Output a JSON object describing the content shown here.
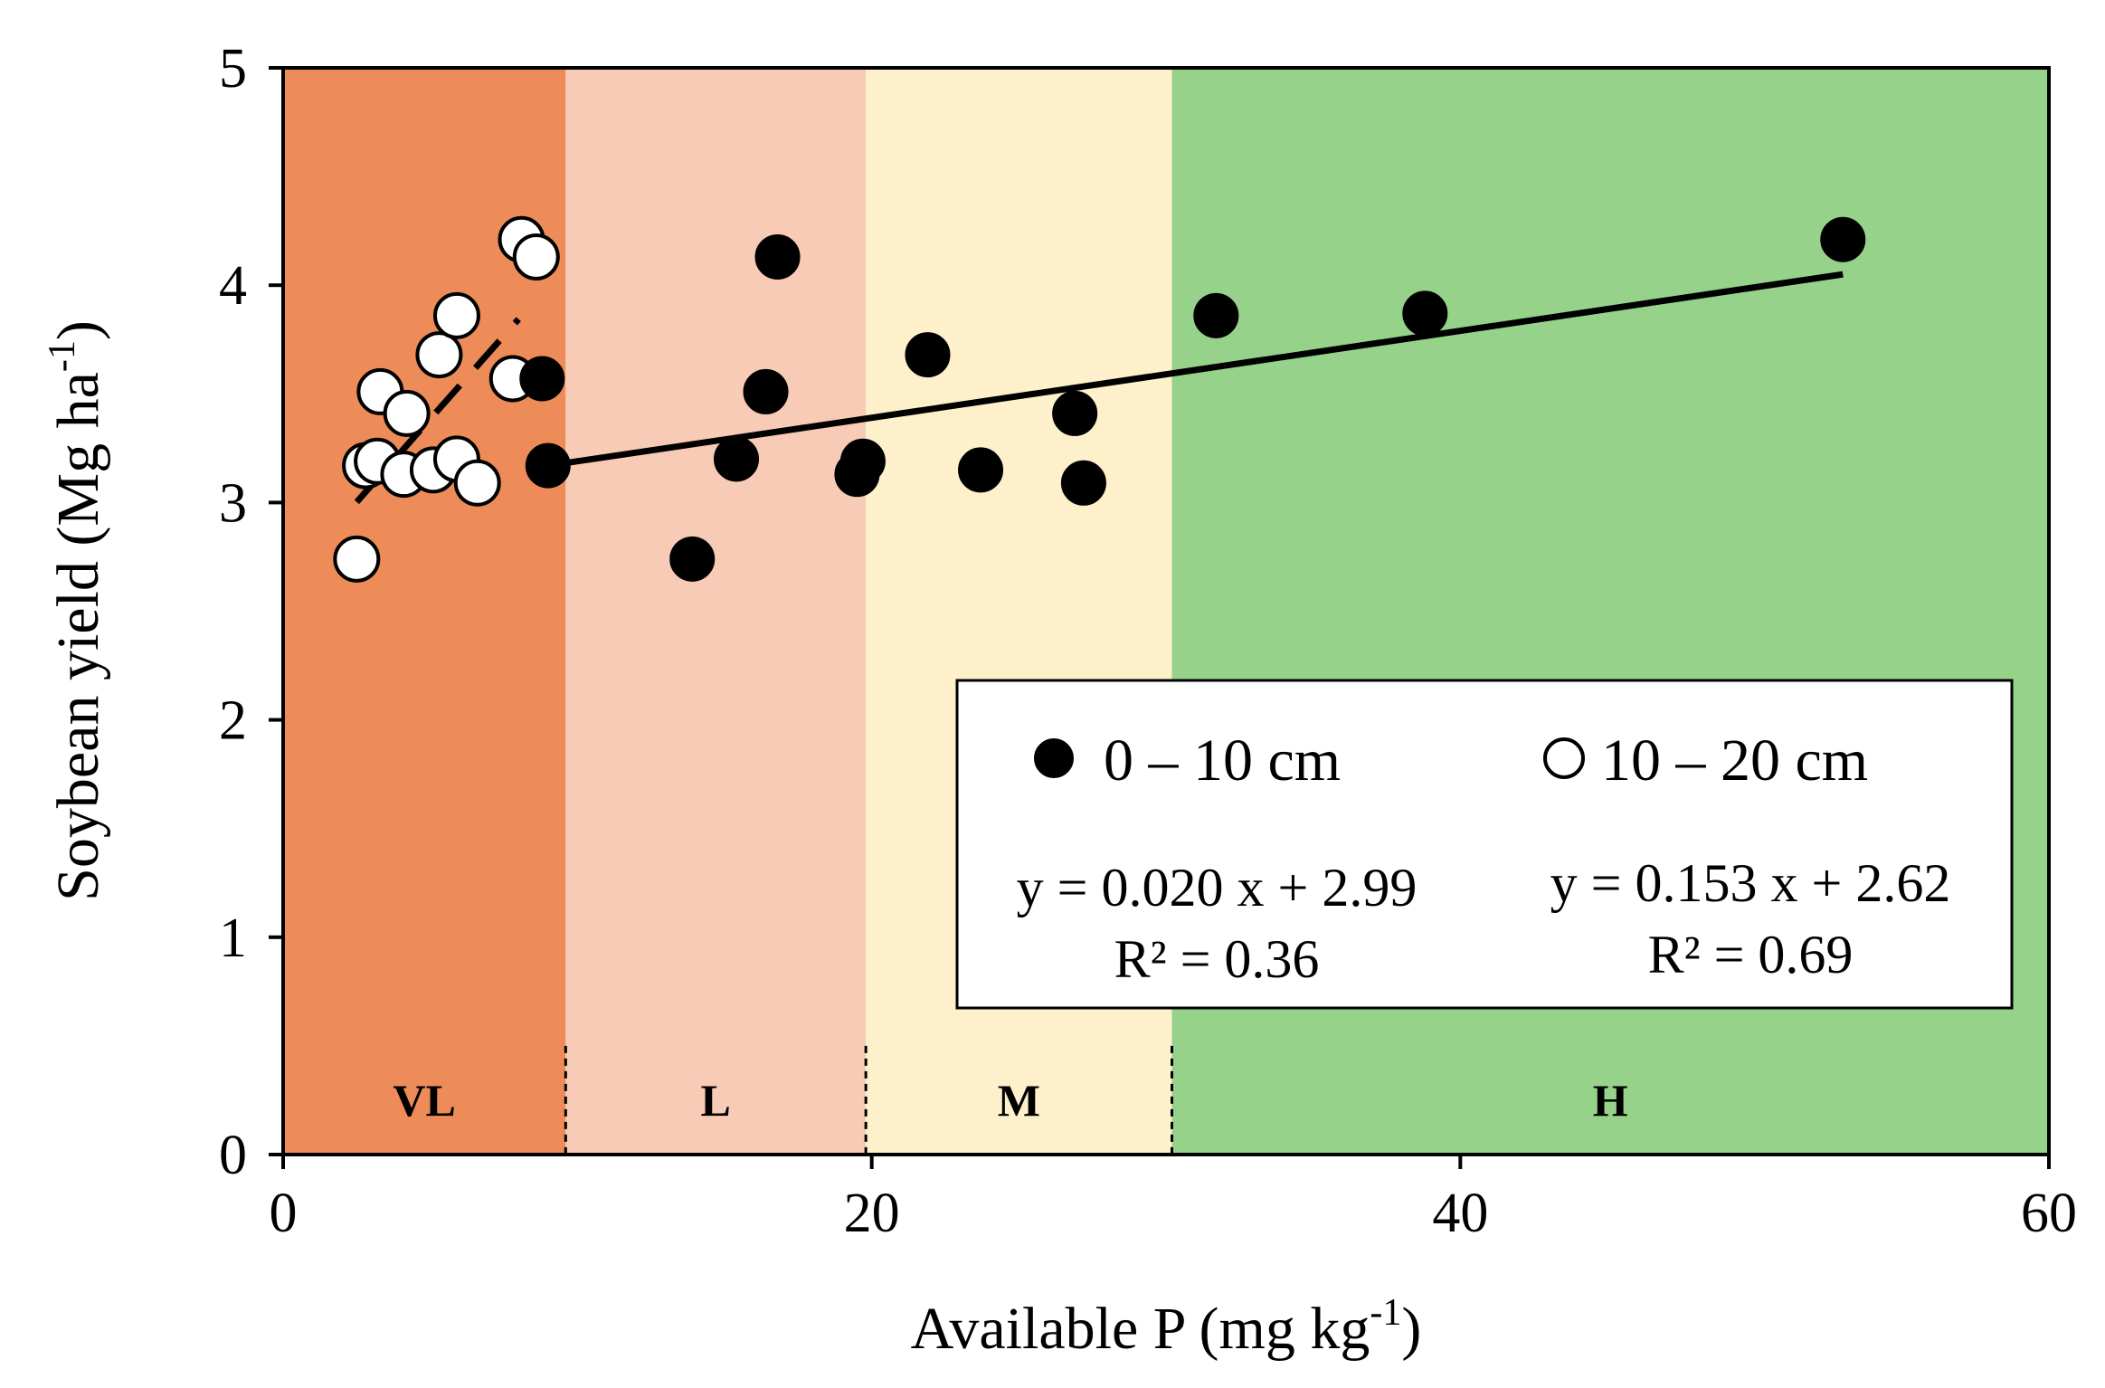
{
  "chart_data": {
    "type": "scatter",
    "xlabel": "Available P (mg kg",
    "xlabel_sup": "-1",
    "xlabel_close": ")",
    "ylabel": "Soybean yield (Mg ha",
    "ylabel_sup": "-1",
    "ylabel_close": ")",
    "xlim": [
      0,
      60
    ],
    "ylim": [
      0,
      5
    ],
    "xticks": [
      "0",
      "20",
      "40",
      "60"
    ],
    "yticks": [
      "0",
      "1",
      "2",
      "3",
      "4",
      "5"
    ],
    "zones": [
      {
        "label": "VL",
        "x0": 0,
        "x1": 9.6,
        "color": "#ed8c58"
      },
      {
        "label": "L",
        "x0": 9.6,
        "x1": 19.8,
        "color": "#f8cbb6"
      },
      {
        "label": "M",
        "x0": 19.8,
        "x1": 30.2,
        "color": "#fef0cb"
      },
      {
        "label": "H",
        "x0": 30.2,
        "x1": 60,
        "color": "#97d28a"
      }
    ],
    "series": [
      {
        "name": "0 – 10 cm",
        "marker": "filled",
        "points": [
          [
            8.8,
            3.57
          ],
          [
            9.0,
            3.17
          ],
          [
            13.9,
            2.74
          ],
          [
            15.4,
            3.2
          ],
          [
            16.4,
            3.51
          ],
          [
            16.8,
            4.13
          ],
          [
            19.5,
            3.13
          ],
          [
            19.7,
            3.19
          ],
          [
            21.9,
            3.68
          ],
          [
            23.7,
            3.15
          ],
          [
            26.9,
            3.41
          ],
          [
            27.2,
            3.09
          ],
          [
            31.7,
            3.86
          ],
          [
            38.8,
            3.87
          ],
          [
            53.0,
            4.21
          ]
        ],
        "fit": {
          "slope": 0.02,
          "intercept": 2.99,
          "x_range": [
            9.0,
            53.0
          ],
          "style": "solid"
        },
        "equation": "y = 0.020 x + 2.99",
        "r2": "R² = 0.36"
      },
      {
        "name": "10 – 20 cm",
        "marker": "open",
        "points": [
          [
            2.5,
            2.74
          ],
          [
            2.8,
            3.17
          ],
          [
            3.2,
            3.19
          ],
          [
            3.3,
            3.51
          ],
          [
            4.1,
            3.13
          ],
          [
            4.2,
            3.41
          ],
          [
            5.1,
            3.15
          ],
          [
            5.3,
            3.68
          ],
          [
            5.9,
            3.86
          ],
          [
            5.9,
            3.2
          ],
          [
            6.6,
            3.09
          ],
          [
            7.8,
            3.57
          ],
          [
            8.1,
            4.21
          ],
          [
            8.6,
            4.13
          ]
        ],
        "fit": {
          "slope": 0.153,
          "intercept": 2.62,
          "x_range": [
            2.5,
            8.0
          ],
          "style": "dashed"
        },
        "equation": "y = 0.153 x + 2.62",
        "r2": "R² = 0.69"
      }
    ],
    "legend": {
      "position": "bottom-right"
    }
  }
}
